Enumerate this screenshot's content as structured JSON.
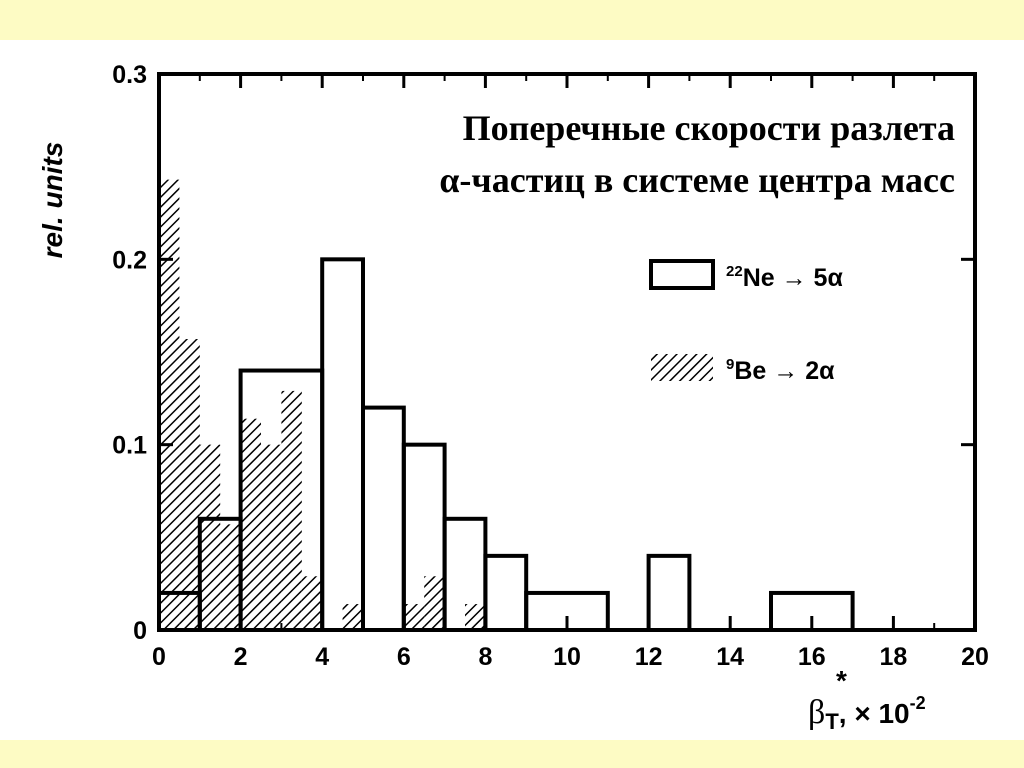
{
  "chart_data": {
    "type": "histogram",
    "title": [
      "Поперечные скорости разлета",
      "α-частиц в системе центра масс"
    ],
    "xlabel": {
      "symbol": "β",
      "superscript": "*",
      "subscript": "T",
      "suffix": ", × 10",
      "exponent": "-2"
    },
    "ylabel": "rel. units",
    "xlim": [
      0,
      20
    ],
    "ylim": [
      0,
      0.3
    ],
    "xticks": [
      "0",
      "2",
      "4",
      "6",
      "8",
      "10",
      "12",
      "14",
      "16",
      "18",
      "20"
    ],
    "yticks": [
      "0",
      "0.1",
      "0.2",
      "0.3"
    ],
    "grid": false,
    "legend_position": "upper-right",
    "series": [
      {
        "name": "²²Ne → 5α",
        "legend": {
          "sup": "22",
          "text": "Ne → 5α"
        },
        "style": "open",
        "bins": [
          {
            "x0": 0,
            "x1": 1,
            "y": 0.02
          },
          {
            "x0": 1,
            "x1": 2,
            "y": 0.06
          },
          {
            "x0": 2,
            "x1": 4,
            "y": 0.14
          },
          {
            "x0": 4,
            "x1": 5,
            "y": 0.2
          },
          {
            "x0": 5,
            "x1": 6,
            "y": 0.12
          },
          {
            "x0": 6,
            "x1": 7,
            "y": 0.1
          },
          {
            "x0": 7,
            "x1": 8,
            "y": 0.06
          },
          {
            "x0": 8,
            "x1": 9,
            "y": 0.04
          },
          {
            "x0": 9,
            "x1": 11,
            "y": 0.02
          },
          {
            "x0": 11,
            "x1": 12,
            "y": 0.0
          },
          {
            "x0": 12,
            "x1": 13,
            "y": 0.04
          },
          {
            "x0": 13,
            "x1": 15,
            "y": 0.0
          },
          {
            "x0": 15,
            "x1": 17,
            "y": 0.02
          },
          {
            "x0": 17,
            "x1": 20,
            "y": 0.0
          }
        ]
      },
      {
        "name": "⁹Be → 2α",
        "legend": {
          "sup": "9",
          "text": "Be → 2α"
        },
        "style": "hatched",
        "bins": [
          {
            "x0": 0,
            "x1": 0.5,
            "y": 0.243
          },
          {
            "x0": 0.5,
            "x1": 1,
            "y": 0.157
          },
          {
            "x0": 1,
            "x1": 1.5,
            "y": 0.1
          },
          {
            "x0": 1.5,
            "x1": 2,
            "y": 0.057
          },
          {
            "x0": 2,
            "x1": 2.5,
            "y": 0.114
          },
          {
            "x0": 2.5,
            "x1": 3,
            "y": 0.1
          },
          {
            "x0": 3,
            "x1": 3.5,
            "y": 0.129
          },
          {
            "x0": 3.5,
            "x1": 4,
            "y": 0.029
          },
          {
            "x0": 4.5,
            "x1": 5,
            "y": 0.014
          },
          {
            "x0": 6,
            "x1": 6.5,
            "y": 0.014
          },
          {
            "x0": 6.5,
            "x1": 7,
            "y": 0.029
          },
          {
            "x0": 7.5,
            "x1": 8,
            "y": 0.014
          }
        ]
      }
    ]
  }
}
